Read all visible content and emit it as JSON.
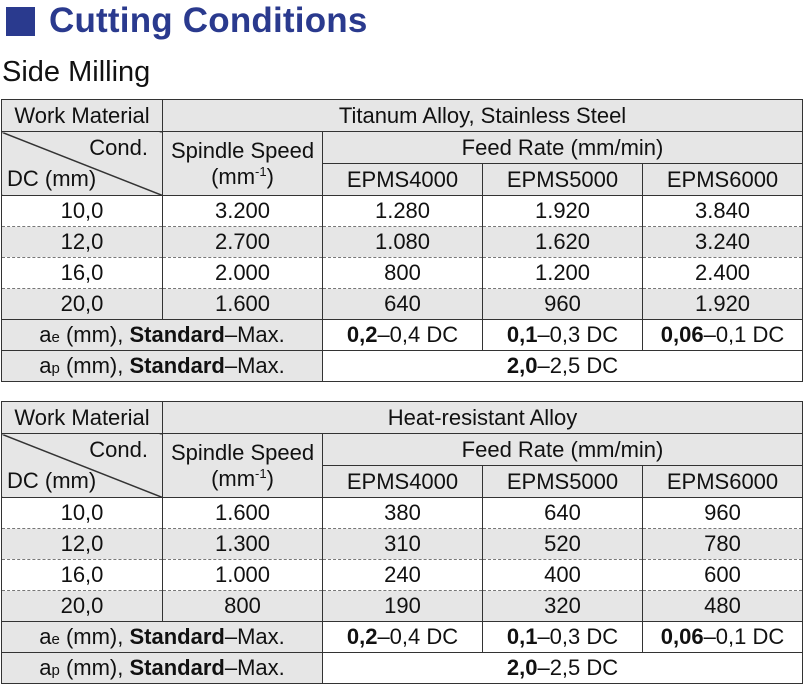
{
  "title": "Cutting Conditions",
  "subtitle": "Side Milling",
  "common": {
    "work_material": "Work Material",
    "cond": "Cond.",
    "dc": "DC (mm)",
    "spindle_line1": "Spindle Speed",
    "spindle_line2_pre": "(mm",
    "spindle_sup": "-1",
    "spindle_line2_post": ")",
    "feed_rate": "Feed Rate (mm/min)",
    "grades": [
      "EPMS4000",
      "EPMS5000",
      "EPMS6000"
    ],
    "ae_prefix": "a",
    "ae_sub": "e",
    "ap_prefix": "a",
    "ap_sub": "p",
    "mm_paren": " (mm), ",
    "standard": "Standard",
    "max": "–Max."
  },
  "tables": [
    {
      "material": "Titanum Alloy, Stainless Steel",
      "rows": [
        {
          "dc": "10,0",
          "spindle": "3.200",
          "feed": [
            "1.280",
            "1.920",
            "3.840"
          ]
        },
        {
          "dc": "12,0",
          "spindle": "2.700",
          "feed": [
            "1.080",
            "1.620",
            "3.240"
          ]
        },
        {
          "dc": "16,0",
          "spindle": "2.000",
          "feed": [
            "800",
            "1.200",
            "2.400"
          ]
        },
        {
          "dc": "20,0",
          "spindle": "1.600",
          "feed": [
            "640",
            "960",
            "1.920"
          ]
        }
      ],
      "ae": [
        {
          "std": "0,2",
          "rest": "–0,4 DC"
        },
        {
          "std": "0,1",
          "rest": "–0,3 DC"
        },
        {
          "std": "0,06",
          "rest": "–0,1 DC"
        }
      ],
      "ap": {
        "std": "2,0",
        "rest": "–2,5 DC"
      }
    },
    {
      "material": "Heat-resistant Alloy",
      "rows": [
        {
          "dc": "10,0",
          "spindle": "1.600",
          "feed": [
            "380",
            "640",
            "960"
          ]
        },
        {
          "dc": "12,0",
          "spindle": "1.300",
          "feed": [
            "310",
            "520",
            "780"
          ]
        },
        {
          "dc": "16,0",
          "spindle": "1.000",
          "feed": [
            "240",
            "400",
            "600"
          ]
        },
        {
          "dc": "20,0",
          "spindle": "800",
          "feed": [
            "190",
            "320",
            "480"
          ]
        }
      ],
      "ae": [
        {
          "std": "0,2",
          "rest": "–0,4 DC"
        },
        {
          "std": "0,1",
          "rest": "–0,3 DC"
        },
        {
          "std": "0,06",
          "rest": "–0,1 DC"
        }
      ],
      "ap": {
        "std": "2,0",
        "rest": "–2,5 DC"
      }
    }
  ]
}
